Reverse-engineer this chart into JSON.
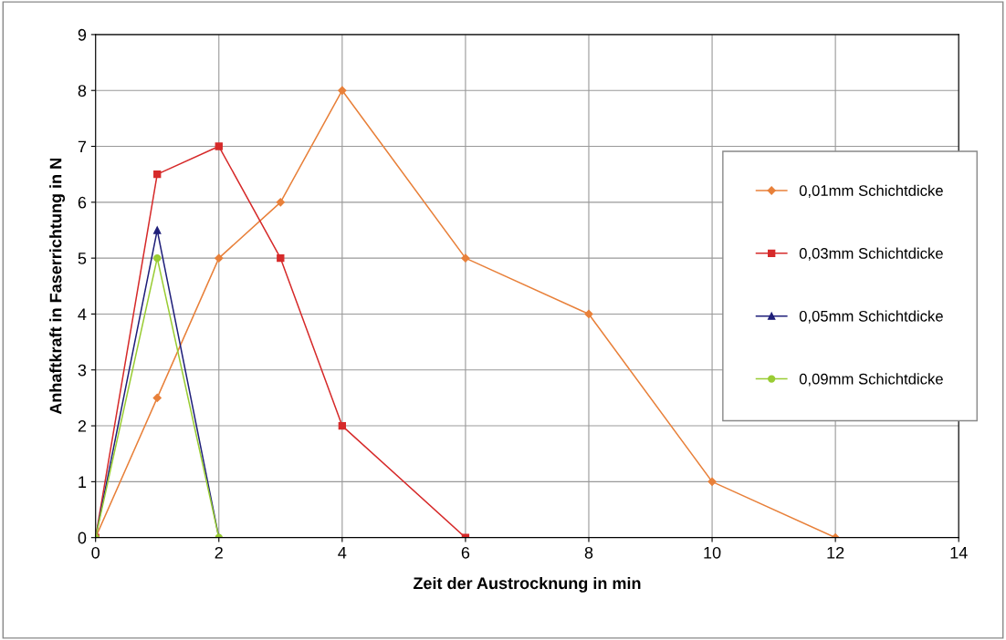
{
  "chart_data": {
    "type": "line",
    "xlabel": "Zeit der Austrocknung in min",
    "ylabel": "Anhaftkraft in Faserrichtung in N",
    "xlim": [
      0,
      14
    ],
    "xticks": [
      0,
      2,
      4,
      6,
      8,
      10,
      12,
      14
    ],
    "ylim": [
      0,
      9
    ],
    "yticks": [
      0,
      1,
      2,
      3,
      4,
      5,
      6,
      7,
      8,
      9
    ],
    "grid": true,
    "legend": "right",
    "line_style": "solid",
    "series": [
      {
        "name": "0,01mm Schichtdicke",
        "color": "#e8803a",
        "marker": "diamond",
        "x": [
          0,
          1,
          2,
          3,
          4,
          6,
          8,
          10,
          12
        ],
        "values": [
          0,
          2.5,
          5,
          6,
          8,
          5,
          4,
          1,
          0
        ]
      },
      {
        "name": "0,03mm Schichtdicke",
        "color": "#d62a2a",
        "marker": "square",
        "x": [
          0,
          1,
          2,
          3,
          4,
          6
        ],
        "values": [
          0,
          6.5,
          7,
          5,
          2,
          0
        ]
      },
      {
        "name": "0,05mm Schichtdicke",
        "color": "#1f1f7a",
        "marker": "triangle",
        "x": [
          0,
          1,
          2
        ],
        "values": [
          0,
          5.5,
          0
        ]
      },
      {
        "name": "0,09mm Schichtdicke",
        "color": "#99cc33",
        "marker": "circle",
        "x": [
          0,
          1,
          2
        ],
        "values": [
          0,
          5,
          0
        ]
      }
    ]
  }
}
